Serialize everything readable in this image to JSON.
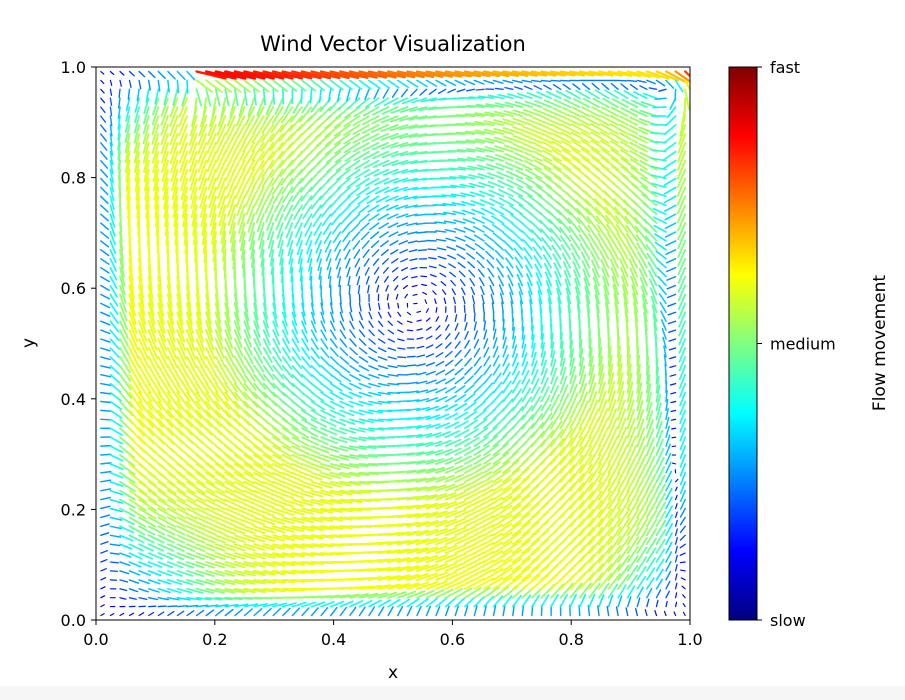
{
  "chart_data": {
    "type": "quiver",
    "title": "Wind Vector Visualization",
    "xlabel": "x",
    "ylabel": "y",
    "xlim": [
      0.0,
      1.0
    ],
    "ylim": [
      0.0,
      1.0
    ],
    "xticks": [
      "0.0",
      "0.2",
      "0.4",
      "0.6",
      "0.8",
      "1.0"
    ],
    "yticks": [
      "0.0",
      "0.2",
      "0.4",
      "0.6",
      "0.8",
      "1.0"
    ],
    "grid": false,
    "vortex_center": [
      0.54,
      0.57
    ],
    "lid_speed": 1.0,
    "colormap": "jet",
    "colorbar": {
      "label": "Flow movement",
      "tick_labels": [
        "slow",
        "medium",
        "fast"
      ],
      "tick_positions": [
        0.0,
        0.5,
        1.0
      ],
      "stops": [
        "#000080",
        "#0000ff",
        "#0080ff",
        "#00ffff",
        "#80ff80",
        "#ffff00",
        "#ff8000",
        "#ff0000",
        "#800000"
      ]
    }
  }
}
